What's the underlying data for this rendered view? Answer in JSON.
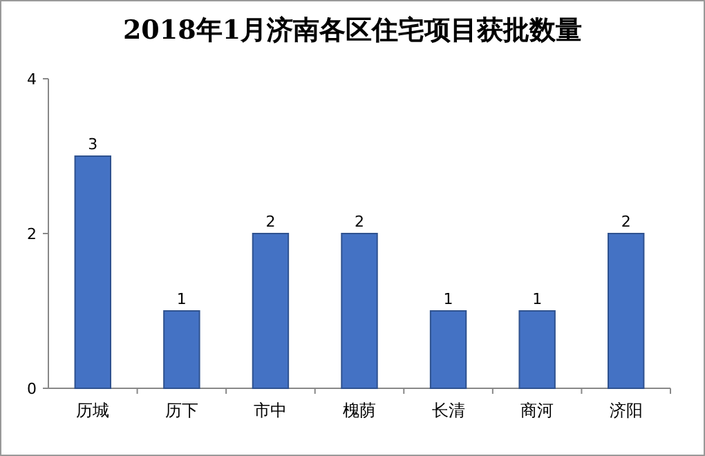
{
  "chart_data": {
    "type": "bar",
    "title": "2018年1月济南各区住宅项目获批数量",
    "categories": [
      "历城",
      "历下",
      "市中",
      "槐荫",
      "长清",
      "商河",
      "济阳"
    ],
    "values": [
      3,
      1,
      2,
      2,
      1,
      1,
      2
    ],
    "color": "#4472c4",
    "ylim": [
      0,
      4
    ],
    "yticks": [
      0,
      2,
      4
    ],
    "data_labels": true
  }
}
